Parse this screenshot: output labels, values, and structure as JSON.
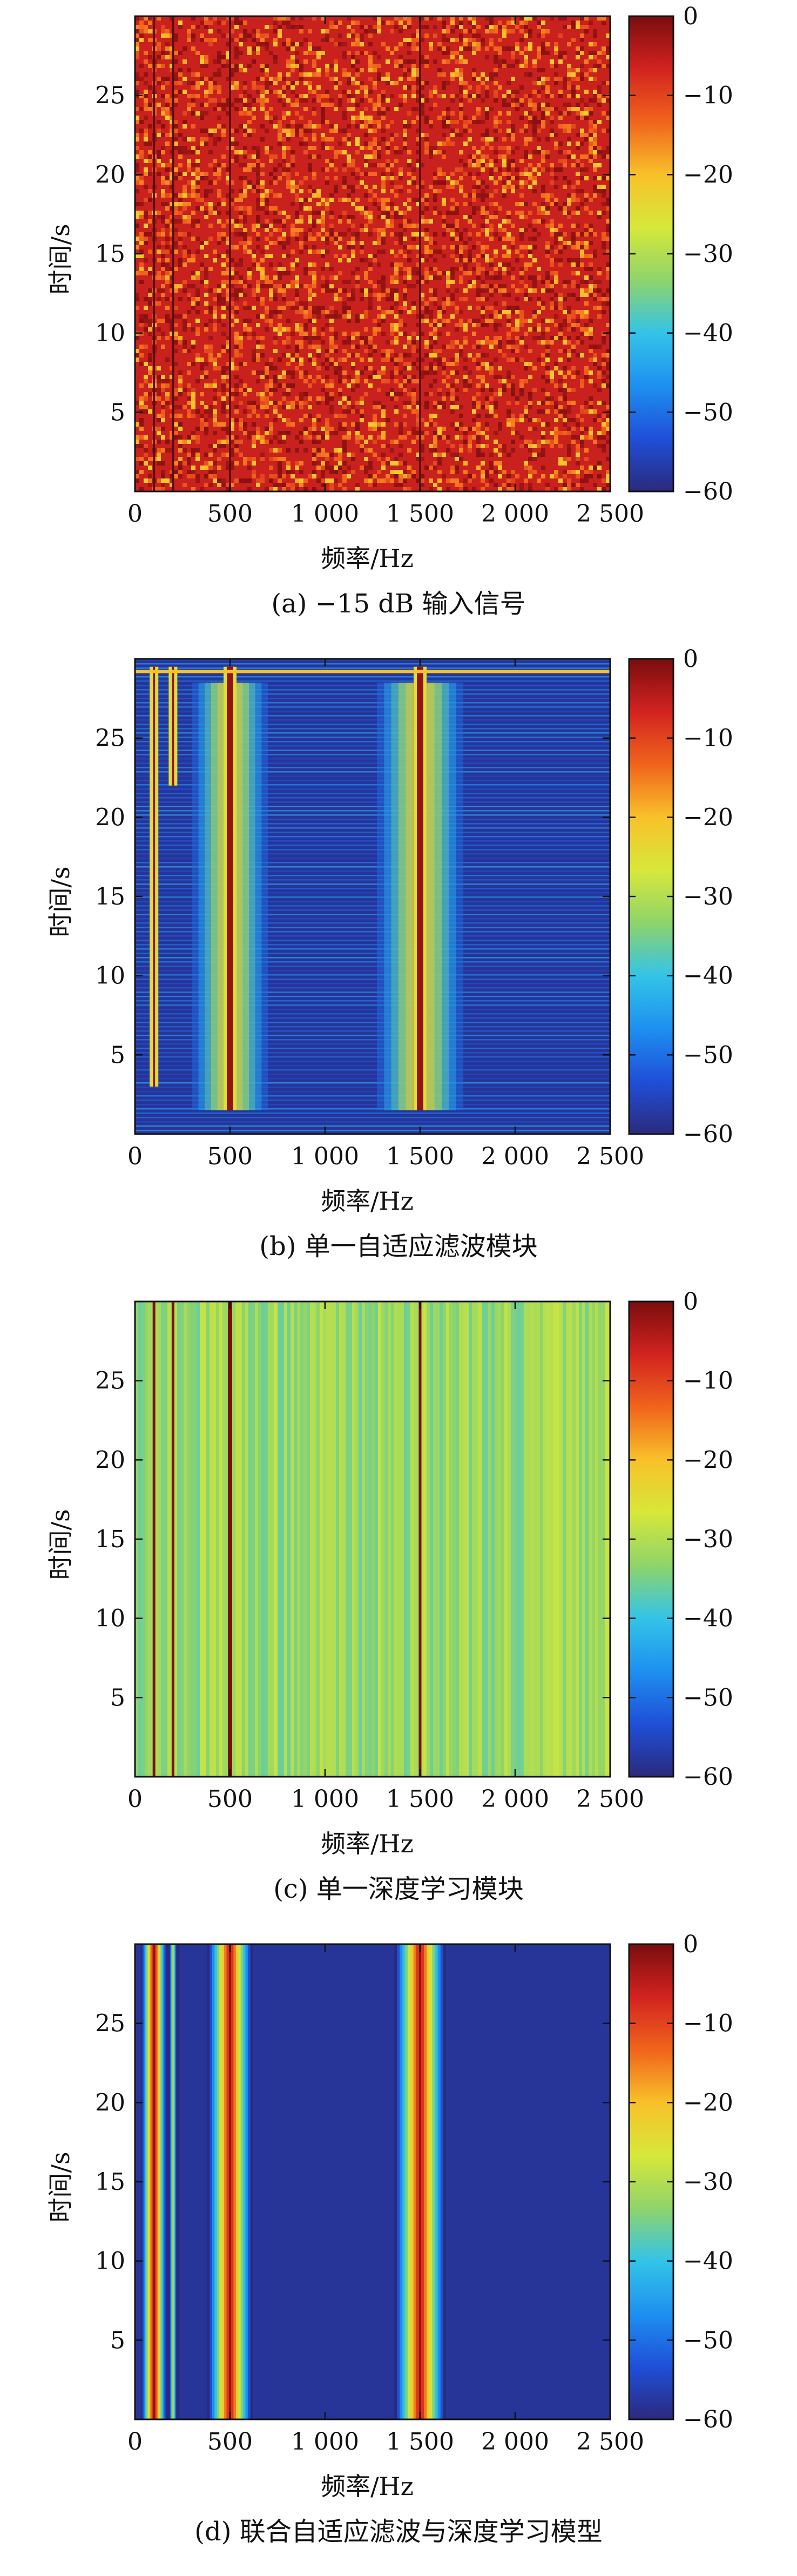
{
  "colors": {
    "colormap": [
      "#2b2a7c",
      "#1f4fd8",
      "#1e90f0",
      "#33c4e8",
      "#8fd46a",
      "#d6e83a",
      "#f8c12a",
      "#f0641c",
      "#d2231f",
      "#7a0d0e"
    ],
    "background": "#ffffff",
    "axis": "#111111"
  },
  "chart_data": [
    {
      "type": "heatmap",
      "panel": "a",
      "caption": "(a) −15 dB 输入信号",
      "xlabel": "频率/Hz",
      "ylabel": "时间/s",
      "xlim": [
        0,
        2500
      ],
      "ylim": [
        0,
        30
      ],
      "xticks": [
        0,
        500,
        1000,
        1500,
        2000,
        2500
      ],
      "xtick_labels": [
        "0",
        "500",
        "1 000",
        "1 500",
        "2 000",
        "2 500"
      ],
      "yticks": [
        5,
        10,
        15,
        20,
        25
      ],
      "yticks_labels": [
        "5",
        "10",
        "15",
        "20",
        "25"
      ],
      "colorbar": {
        "range": [
          -60,
          0
        ],
        "ticks": [
          0,
          -10,
          -20,
          -30,
          -40,
          -50,
          -60
        ],
        "tick_labels": [
          "0",
          "−10",
          "−20",
          "−30",
          "−40",
          "−50",
          "−60"
        ]
      },
      "background_level_db": -6,
      "tone_frequencies_hz": [
        100,
        200,
        500,
        1500
      ],
      "tone_level_db": -2
    },
    {
      "type": "heatmap",
      "panel": "b",
      "caption": "(b) 单一自适应滤波模块",
      "xlabel": "频率/Hz",
      "ylabel": "时间/s",
      "xlim": [
        0,
        2500
      ],
      "ylim": [
        0,
        30
      ],
      "xticks": [
        0,
        500,
        1000,
        1500,
        2000,
        2500
      ],
      "xtick_labels": [
        "0",
        "500",
        "1 000",
        "1 500",
        "2 000",
        "2 500"
      ],
      "yticks": [
        5,
        10,
        15,
        20,
        25
      ],
      "yticks_labels": [
        "5",
        "10",
        "15",
        "20",
        "25"
      ],
      "colorbar": {
        "range": [
          -60,
          0
        ],
        "ticks": [
          0,
          -10,
          -20,
          -30,
          -40,
          -50,
          -60
        ],
        "tick_labels": [
          "0",
          "−10",
          "−20",
          "−30",
          "−40",
          "−50",
          "−60"
        ]
      },
      "background_level_db": -58,
      "tone_frequencies_hz": [
        100,
        200,
        500,
        1500
      ],
      "tone_level_db": -2
    },
    {
      "type": "heatmap",
      "panel": "c",
      "caption": "(c) 单一深度学习模块",
      "xlabel": "频率/Hz",
      "ylabel": "时间/s",
      "xlim": [
        0,
        2500
      ],
      "ylim": [
        0,
        30
      ],
      "xticks": [
        0,
        500,
        1000,
        1500,
        2000,
        2500
      ],
      "xtick_labels": [
        "0",
        "500",
        "1 000",
        "1 500",
        "2 000",
        "2 500"
      ],
      "yticks": [
        5,
        10,
        15,
        20,
        25
      ],
      "yticks_labels": [
        "5",
        "10",
        "15",
        "20",
        "25"
      ],
      "colorbar": {
        "range": [
          -60,
          0
        ],
        "ticks": [
          0,
          -10,
          -20,
          -30,
          -40,
          -50,
          -60
        ],
        "tick_labels": [
          "0",
          "−10",
          "−20",
          "−30",
          "−40",
          "−50",
          "−60"
        ]
      },
      "background_level_db": -33,
      "tone_frequencies_hz": [
        100,
        200,
        500,
        1500
      ],
      "tone_level_db": 0
    },
    {
      "type": "heatmap",
      "panel": "d",
      "caption": "(d) 联合自适应滤波与深度学习模型",
      "xlabel": "频率/Hz",
      "ylabel": "时间/s",
      "xlim": [
        0,
        2500
      ],
      "ylim": [
        0,
        30
      ],
      "xticks": [
        0,
        500,
        1000,
        1500,
        2000,
        2500
      ],
      "xtick_labels": [
        "0",
        "500",
        "1 000",
        "1 500",
        "2 000",
        "2 500"
      ],
      "yticks": [
        5,
        10,
        15,
        20,
        25
      ],
      "yticks_labels": [
        "5",
        "10",
        "15",
        "20",
        "25"
      ],
      "colorbar": {
        "range": [
          -60,
          0
        ],
        "ticks": [
          0,
          -10,
          -20,
          -30,
          -40,
          -50,
          -60
        ],
        "tick_labels": [
          "0",
          "−10",
          "−20",
          "−30",
          "−40",
          "−50",
          "−60"
        ]
      },
      "background_level_db": -58,
      "tone_frequencies_hz": [
        100,
        200,
        500,
        1500
      ],
      "tone_level_db": -2
    }
  ]
}
